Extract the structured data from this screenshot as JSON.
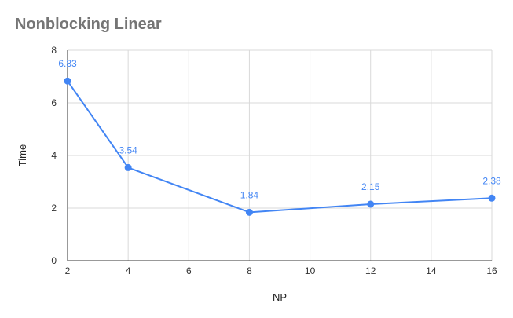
{
  "chart_data": {
    "type": "line",
    "title": "Nonblocking Linear",
    "xlabel": "NP",
    "ylabel": "Time",
    "xlim": [
      2,
      16
    ],
    "ylim": [
      0,
      8
    ],
    "x_ticks": [
      "2",
      "4",
      "6",
      "8",
      "10",
      "12",
      "14",
      "16"
    ],
    "y_ticks": [
      "0",
      "2",
      "4",
      "6",
      "8"
    ],
    "grid": true,
    "legend": "none",
    "series": [
      {
        "color": "#4285f4",
        "points": [
          {
            "x": 2,
            "y": 6.83,
            "label": "6.83"
          },
          {
            "x": 4,
            "y": 3.54,
            "label": "3.54"
          },
          {
            "x": 8,
            "y": 1.84,
            "label": "1.84"
          },
          {
            "x": 12,
            "y": 2.15,
            "label": "2.15"
          },
          {
            "x": 16,
            "y": 2.38,
            "label": "2.38"
          }
        ]
      }
    ],
    "colors": {
      "title": "#757575",
      "grid": "#d9d9d9",
      "axis": "#333333"
    }
  }
}
